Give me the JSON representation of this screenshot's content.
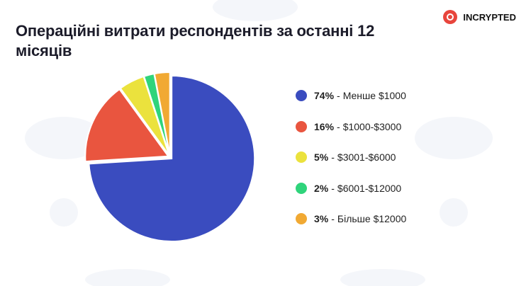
{
  "brand": "INCRYPTED",
  "chart_data": {
    "type": "pie",
    "title": "Операційні витрати респондентів за останні 12 місяців",
    "categories": [
      "Менше $1000",
      "$1000-$3000",
      "$3001-$6000",
      "$6001-$12000",
      "Більше $12000"
    ],
    "values": [
      74,
      16,
      5,
      2,
      3
    ],
    "value_labels": [
      "74%",
      "16%",
      "5%",
      "2%",
      "3%"
    ],
    "colors": [
      "#3a4cbf",
      "#e9553f",
      "#ebe23d",
      "#2fd47b",
      "#f1a933"
    ],
    "legend_separator": "-",
    "legend": "right"
  }
}
